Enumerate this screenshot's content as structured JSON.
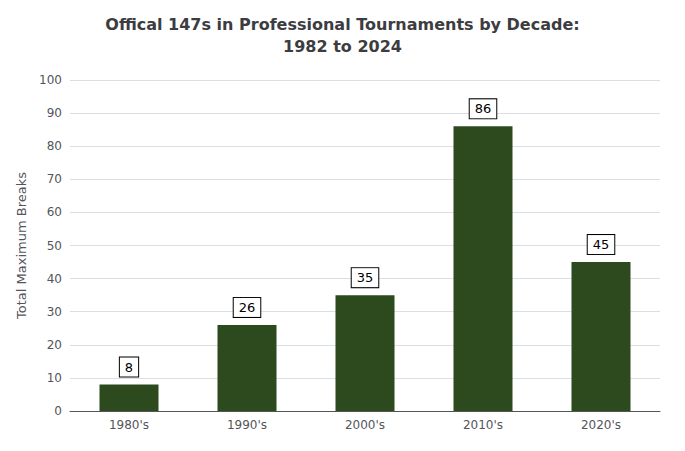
{
  "chart_data": {
    "type": "bar",
    "title": "Offical 147s in Professional Tournaments by Decade:\n1982 to 2024",
    "ylabel": "Total Maximum Breaks",
    "categories": [
      "1980's",
      "1990's",
      "2000's",
      "2010's",
      "2020's"
    ],
    "values": [
      8,
      26,
      35,
      86,
      45
    ],
    "color": "#2d4a1e",
    "ylim": [
      0,
      100
    ],
    "yticks": [
      0,
      10,
      20,
      30,
      40,
      50,
      60,
      70,
      80,
      90,
      100
    ],
    "grid": true,
    "data_labels": true
  }
}
